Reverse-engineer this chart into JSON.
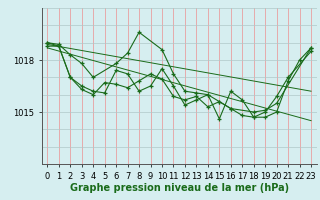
{
  "xlabel": "Graphe pression niveau de la mer (hPa)",
  "bg_color": "#d6eef0",
  "vgrid_color": "#e8a0a0",
  "hgrid_color": "#b0c8c8",
  "line_color": "#1a6b1a",
  "marker_color": "#1a6b1a",
  "ylim": [
    1012.0,
    1021.0
  ],
  "xlim": [
    -0.5,
    23.5
  ],
  "ytick_vals": [
    1015,
    1018
  ],
  "ytick_labels": [
    "1015",
    "1018"
  ],
  "xticks": [
    0,
    1,
    2,
    3,
    4,
    5,
    6,
    7,
    8,
    9,
    10,
    11,
    12,
    13,
    14,
    15,
    16,
    17,
    18,
    19,
    20,
    21,
    22,
    23
  ],
  "series": [
    [
      1019.0,
      1018.9,
      1018.3,
      1017.8,
      1017.0,
      1017.8,
      1018.4,
      1019.6,
      1018.6,
      1017.2,
      1016.2,
      1016.1,
      1016.0,
      1015.6,
      1015.2,
      1015.0,
      1015.1,
      1015.5,
      1018.7
    ],
    [
      1019.0,
      1018.8,
      1017.0,
      1016.5,
      1016.2,
      1016.1,
      1017.4,
      1017.2,
      1016.2,
      1016.5,
      1017.5,
      1016.5,
      1015.4,
      1015.7,
      1016.0,
      1014.6,
      1016.2,
      1015.7,
      1014.7,
      1014.7,
      1015.0,
      1016.8,
      1018.0,
      1018.7
    ],
    [
      1018.8,
      1018.8,
      1017.0,
      1016.3,
      1016.0,
      1016.7,
      1016.6,
      1016.4,
      1016.8,
      1017.2,
      1016.9,
      1015.9,
      1015.7,
      1015.9,
      1015.3,
      1015.6,
      1015.2,
      1014.8,
      1014.7,
      1015.0,
      1015.9,
      1017.0,
      1018.5
    ]
  ],
  "series_x": [
    [
      0,
      1,
      2,
      3,
      4,
      6,
      7,
      8,
      10,
      11,
      12,
      13,
      14,
      15,
      16,
      18,
      19,
      20,
      23
    ],
    [
      0,
      1,
      2,
      3,
      4,
      5,
      6,
      7,
      8,
      9,
      10,
      11,
      12,
      13,
      14,
      15,
      16,
      17,
      18,
      19,
      20,
      21,
      22,
      23
    ],
    [
      0,
      1,
      2,
      3,
      4,
      5,
      6,
      7,
      8,
      9,
      10,
      11,
      12,
      13,
      14,
      15,
      16,
      17,
      18,
      19,
      20,
      21,
      23
    ]
  ],
  "trend_lines": [
    {
      "x": [
        0,
        23
      ],
      "y": [
        1018.9,
        1016.2
      ]
    },
    {
      "x": [
        0,
        23
      ],
      "y": [
        1018.7,
        1014.5
      ]
    }
  ],
  "fontsize_xlabel": 7,
  "tick_labelsize": 6,
  "xlabel_color": "#1a6b1a",
  "xlabel_bold": true
}
